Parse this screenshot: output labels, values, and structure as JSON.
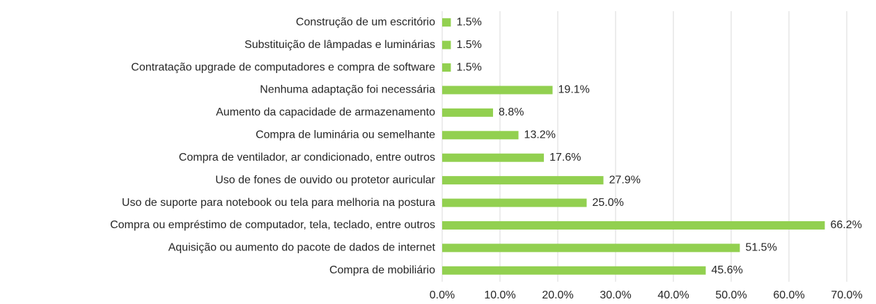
{
  "chart_data": {
    "type": "bar",
    "orientation": "horizontal",
    "categories": [
      "Construção de um escritório",
      "Substituição de lâmpadas e luminárias",
      "Contratação upgrade de computadores e compra de software",
      "Nenhuma adaptação foi necessária",
      "Aumento da capacidade de armazenamento",
      "Compra de luminária ou semelhante",
      "Compra de ventilador, ar condicionado, entre outros",
      "Uso de fones de ouvido ou protetor auricular",
      "Uso de suporte para notebook ou tela para melhoria na postura",
      "Compra ou empréstimo de computador, tela, teclado, entre outros",
      "Aquisição ou aumento do pacote de dados de internet",
      "Compra de mobiliário"
    ],
    "values": [
      1.5,
      1.5,
      1.5,
      19.1,
      8.8,
      13.2,
      17.6,
      27.9,
      25.0,
      66.2,
      51.5,
      45.6
    ],
    "value_labels": [
      "1.5%",
      "1.5%",
      "1.5%",
      "19.1%",
      "8.8%",
      "13.2%",
      "17.6%",
      "27.9%",
      "25.0%",
      "66.2%",
      "51.5%",
      "45.6%"
    ],
    "color": "#92d050",
    "xlim": [
      0,
      70
    ],
    "xticks": [
      {
        "value": 0,
        "label": "0.0%"
      },
      {
        "value": 10,
        "label": "10.0%"
      },
      {
        "value": 20,
        "label": "20.0%"
      },
      {
        "value": 30,
        "label": "30.0%"
      },
      {
        "value": 40,
        "label": "40.0%"
      },
      {
        "value": 50,
        "label": "50.0%"
      },
      {
        "value": 60,
        "label": "60.0%"
      },
      {
        "value": 70,
        "label": "70.0%"
      }
    ],
    "grid": true
  }
}
